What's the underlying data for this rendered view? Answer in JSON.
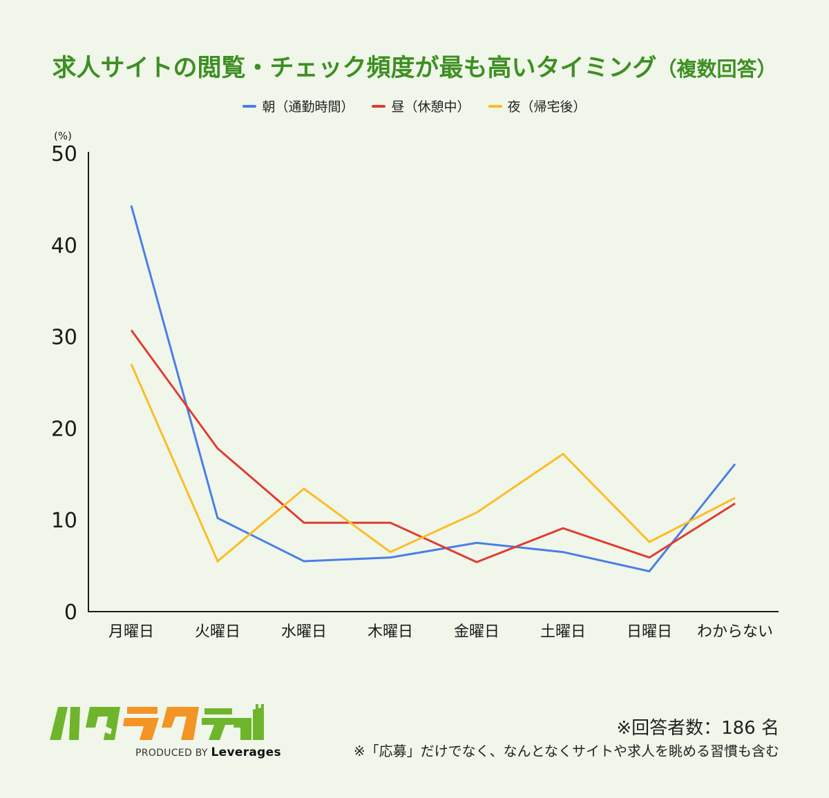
{
  "title": {
    "main": "求人サイトの閲覧・チェック頻度が最も高いタイミング",
    "sub": "（複数回答）"
  },
  "legend": [
    {
      "label": "朝（通勤時間）",
      "color": "#4a7ee6"
    },
    {
      "label": "昼（休憩中）",
      "color": "#e03c31"
    },
    {
      "label": "夜（帰宅後）",
      "color": "#fbbd23"
    }
  ],
  "axis": {
    "unit": "(%)",
    "yticks": [
      "0",
      "10",
      "20",
      "30",
      "40",
      "50"
    ]
  },
  "chart_data": {
    "type": "line",
    "title": "求人サイトの閲覧・チェック頻度が最も高いタイミング（複数回答）",
    "xlabel": "",
    "ylabel": "(%)",
    "ylim": [
      0,
      50
    ],
    "yticks": [
      0,
      10,
      20,
      30,
      40,
      50
    ],
    "grid": false,
    "legend_position": "top",
    "categories": [
      "月曜日",
      "火曜日",
      "水曜日",
      "木曜日",
      "金曜日",
      "土曜日",
      "日曜日",
      "わからない"
    ],
    "series": [
      {
        "name": "朝（通勤時間）",
        "color": "#4a7ee6",
        "values": [
          44.3,
          10.2,
          5.5,
          5.9,
          7.5,
          6.5,
          4.4,
          16.1
        ]
      },
      {
        "name": "昼（休憩中）",
        "color": "#e03c31",
        "values": [
          30.7,
          17.8,
          9.7,
          9.7,
          5.4,
          9.1,
          5.9,
          11.8
        ]
      },
      {
        "name": "夜（帰宅後）",
        "color": "#fbbd23",
        "values": [
          27.0,
          5.5,
          13.4,
          6.5,
          10.8,
          17.2,
          7.6,
          12.4
        ]
      }
    ]
  },
  "logo": {
    "text": "ハタラクティブ",
    "produced_by": "PRODUCED BY",
    "brand": "Leverages"
  },
  "notes": {
    "respondents": "※回答者数：186 名",
    "remark": "※「応募」だけでなく、なんとなくサイトや求人を眺める習慣も含む"
  }
}
